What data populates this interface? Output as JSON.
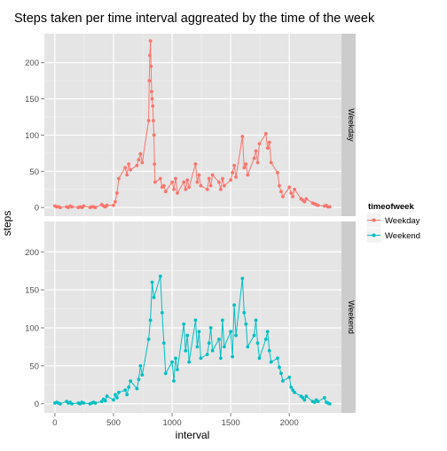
{
  "chart_data": {
    "type": "line",
    "title": "Steps taken per time interval aggreated by the time of the week",
    "xlabel": "interval",
    "ylabel": "steps",
    "xlim": [
      -90,
      2445
    ],
    "x_ticks": [
      0,
      500,
      1000,
      1500,
      2000
    ],
    "ylim": [
      -12,
      240
    ],
    "y_ticks": [
      0,
      50,
      100,
      150,
      200
    ],
    "grid": true,
    "legend": {
      "title": "timeofweek",
      "position": "right",
      "entries": [
        "Weekday",
        "Weekend"
      ]
    },
    "facets": [
      {
        "strip_label": "Weekday",
        "series_name": "Weekday",
        "color": "#F8766D",
        "x": [
          0,
          15,
          30,
          45,
          100,
          115,
          130,
          145,
          200,
          215,
          230,
          245,
          300,
          315,
          330,
          345,
          400,
          415,
          430,
          445,
          500,
          515,
          530,
          545,
          600,
          615,
          630,
          645,
          700,
          715,
          730,
          745,
          800,
          805,
          810,
          815,
          820,
          825,
          830,
          835,
          840,
          845,
          850,
          855,
          900,
          915,
          930,
          945,
          1000,
          1015,
          1030,
          1045,
          1100,
          1115,
          1130,
          1145,
          1200,
          1215,
          1230,
          1245,
          1300,
          1315,
          1330,
          1345,
          1400,
          1415,
          1430,
          1445,
          1500,
          1515,
          1530,
          1545,
          1600,
          1615,
          1630,
          1645,
          1700,
          1715,
          1730,
          1745,
          1800,
          1815,
          1830,
          1845,
          1900,
          1915,
          1930,
          1945,
          2000,
          2015,
          2030,
          2045,
          2100,
          2115,
          2130,
          2145,
          2200,
          2215,
          2230,
          2245,
          2300,
          2315,
          2330,
          2345
        ],
        "y": [
          2,
          1,
          1,
          0,
          1,
          0,
          2,
          1,
          0,
          1,
          0,
          2,
          0,
          1,
          1,
          0,
          4,
          2,
          1,
          3,
          3,
          8,
          20,
          40,
          55,
          45,
          60,
          52,
          58,
          66,
          74,
          62,
          120,
          175,
          210,
          230,
          195,
          160,
          150,
          140,
          120,
          100,
          60,
          35,
          40,
          28,
          30,
          22,
          35,
          25,
          40,
          20,
          35,
          25,
          38,
          28,
          60,
          35,
          45,
          30,
          25,
          40,
          30,
          45,
          35,
          25,
          40,
          30,
          38,
          48,
          58,
          42,
          98,
          55,
          60,
          45,
          68,
          78,
          62,
          88,
          102,
          82,
          90,
          62,
          48,
          30,
          22,
          15,
          28,
          20,
          15,
          25,
          12,
          10,
          8,
          12,
          6,
          5,
          4,
          3,
          2,
          3,
          1,
          1
        ]
      },
      {
        "strip_label": "Weekend",
        "series_name": "Weekend",
        "color": "#00BFC4",
        "x": [
          0,
          15,
          30,
          45,
          100,
          115,
          130,
          145,
          200,
          215,
          230,
          245,
          300,
          315,
          330,
          345,
          400,
          415,
          430,
          445,
          500,
          515,
          530,
          545,
          600,
          615,
          630,
          645,
          700,
          715,
          730,
          745,
          800,
          815,
          830,
          845,
          900,
          915,
          930,
          945,
          1000,
          1015,
          1030,
          1045,
          1100,
          1115,
          1130,
          1145,
          1200,
          1215,
          1230,
          1245,
          1300,
          1315,
          1330,
          1345,
          1400,
          1415,
          1430,
          1445,
          1500,
          1515,
          1530,
          1545,
          1600,
          1615,
          1630,
          1645,
          1700,
          1715,
          1730,
          1745,
          1800,
          1815,
          1830,
          1845,
          1900,
          1915,
          1930,
          1945,
          2000,
          2015,
          2030,
          2045,
          2100,
          2115,
          2130,
          2145,
          2200,
          2215,
          2230,
          2245,
          2300,
          2315,
          2330,
          2345
        ],
        "y": [
          1,
          2,
          1,
          0,
          3,
          1,
          2,
          0,
          1,
          0,
          2,
          1,
          0,
          1,
          2,
          1,
          3,
          6,
          4,
          10,
          5,
          12,
          8,
          15,
          18,
          12,
          22,
          30,
          20,
          32,
          50,
          38,
          85,
          110,
          160,
          140,
          168,
          120,
          80,
          40,
          55,
          30,
          60,
          45,
          105,
          70,
          90,
          55,
          110,
          75,
          95,
          60,
          65,
          80,
          100,
          70,
          85,
          60,
          110,
          75,
          95,
          62,
          130,
          90,
          165,
          120,
          105,
          75,
          90,
          110,
          80,
          60,
          85,
          95,
          70,
          55,
          60,
          48,
          40,
          30,
          35,
          22,
          18,
          15,
          10,
          8,
          5,
          10,
          3,
          2,
          5,
          3,
          8,
          2,
          1,
          0
        ]
      }
    ]
  }
}
